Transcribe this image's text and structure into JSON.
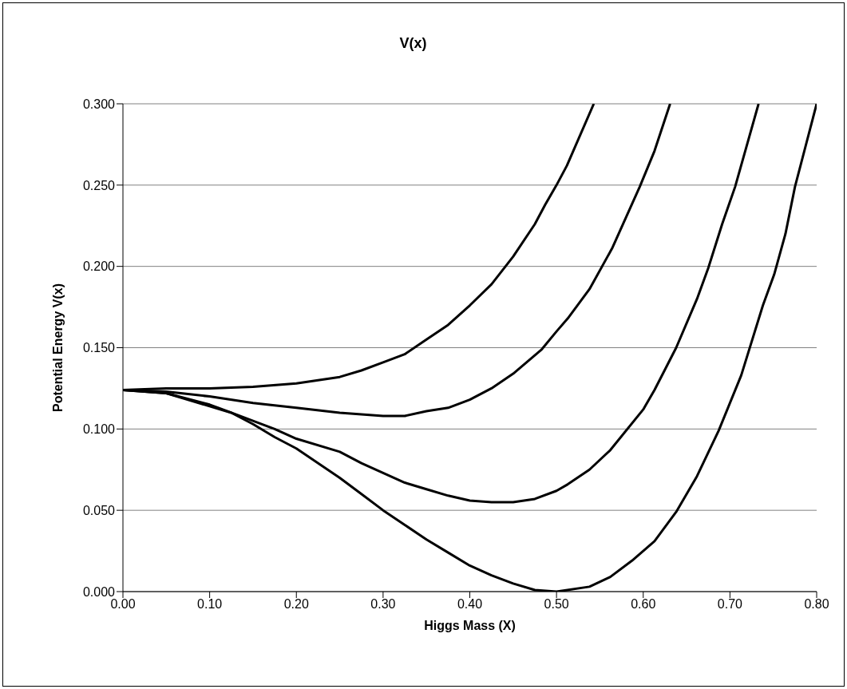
{
  "chart_data": {
    "type": "line",
    "title": "V(x)",
    "xlabel": "Higgs Mass (X)",
    "ylabel": "Potential Energy V(x)",
    "xlim": [
      0,
      0.8
    ],
    "ylim": [
      0,
      0.3
    ],
    "xticks": [
      {
        "value": 0,
        "label": "0.00"
      },
      {
        "value": 0.1,
        "label": "0.10"
      },
      {
        "value": 0.2,
        "label": "0.20"
      },
      {
        "value": 0.3,
        "label": "0.30"
      },
      {
        "value": 0.4,
        "label": "0.40"
      },
      {
        "value": 0.5,
        "label": "0.50"
      },
      {
        "value": 0.6,
        "label": "0.60"
      },
      {
        "value": 0.7,
        "label": "0.70"
      },
      {
        "value": 0.8,
        "label": "0.80"
      }
    ],
    "yticks": [
      {
        "value": 0,
        "label": "0.000"
      },
      {
        "value": 0.05,
        "label": "0.050"
      },
      {
        "value": 0.1,
        "label": "0.100"
      },
      {
        "value": 0.15,
        "label": "0.150"
      },
      {
        "value": 0.2,
        "label": "0.200"
      },
      {
        "value": 0.25,
        "label": "0.250"
      },
      {
        "value": 0.3,
        "label": "0.300"
      }
    ],
    "grid": "y",
    "legend": false,
    "marker": "none",
    "line_style": "solid",
    "series": [
      {
        "color": "#000000",
        "x": [
          0,
          0.05,
          0.1,
          0.15,
          0.2,
          0.25,
          0.275,
          0.3,
          0.325,
          0.35,
          0.375,
          0.4,
          0.425,
          0.45,
          0.475,
          0.487,
          0.5,
          0.512,
          0.543
        ],
        "values": [
          0.124,
          0.125,
          0.125,
          0.126,
          0.128,
          0.132,
          0.136,
          0.141,
          0.146,
          0.155,
          0.164,
          0.176,
          0.189,
          0.206,
          0.226,
          0.238,
          0.25,
          0.262,
          0.3
        ]
      },
      {
        "color": "#000000",
        "x": [
          0,
          0.05,
          0.1,
          0.15,
          0.2,
          0.25,
          0.3,
          0.325,
          0.35,
          0.375,
          0.4,
          0.425,
          0.45,
          0.483,
          0.5,
          0.513,
          0.538,
          0.564,
          0.596,
          0.613,
          0.631
        ],
        "values": [
          0.124,
          0.123,
          0.12,
          0.116,
          0.113,
          0.11,
          0.108,
          0.108,
          0.111,
          0.113,
          0.118,
          0.125,
          0.134,
          0.149,
          0.16,
          0.168,
          0.186,
          0.211,
          0.249,
          0.271,
          0.3
        ]
      },
      {
        "color": "#000000",
        "x": [
          0,
          0.05,
          0.1,
          0.125,
          0.15,
          0.175,
          0.2,
          0.25,
          0.275,
          0.3,
          0.325,
          0.35,
          0.375,
          0.4,
          0.425,
          0.45,
          0.475,
          0.5,
          0.513,
          0.538,
          0.562,
          0.6,
          0.613,
          0.638,
          0.662,
          0.675,
          0.691,
          0.706,
          0.733
        ],
        "values": [
          0.124,
          0.122,
          0.114,
          0.11,
          0.105,
          0.1,
          0.094,
          0.086,
          0.079,
          0.073,
          0.067,
          0.063,
          0.059,
          0.056,
          0.055,
          0.055,
          0.057,
          0.062,
          0.066,
          0.075,
          0.087,
          0.112,
          0.124,
          0.15,
          0.18,
          0.199,
          0.226,
          0.249,
          0.3
        ]
      },
      {
        "color": "#000000",
        "x": [
          0,
          0.05,
          0.1,
          0.125,
          0.15,
          0.175,
          0.2,
          0.25,
          0.275,
          0.3,
          0.325,
          0.35,
          0.375,
          0.4,
          0.425,
          0.45,
          0.475,
          0.5,
          0.538,
          0.562,
          0.587,
          0.613,
          0.638,
          0.662,
          0.687,
          0.713,
          0.738,
          0.751,
          0.764,
          0.775,
          0.8
        ],
        "values": [
          0.124,
          0.122,
          0.115,
          0.11,
          0.103,
          0.095,
          0.088,
          0.07,
          0.06,
          0.05,
          0.041,
          0.032,
          0.024,
          0.016,
          0.01,
          0.005,
          0.001,
          0,
          0.003,
          0.009,
          0.019,
          0.031,
          0.049,
          0.071,
          0.099,
          0.133,
          0.176,
          0.195,
          0.22,
          0.249,
          0.3
        ]
      }
    ]
  }
}
